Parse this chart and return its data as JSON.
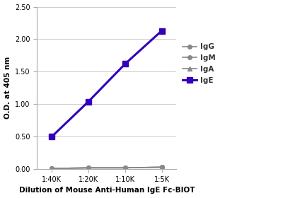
{
  "x_labels": [
    "1:40K",
    "1:20K",
    "1:10K",
    "1:5K"
  ],
  "x_values": [
    1,
    2,
    3,
    4
  ],
  "series_order": [
    "IgG",
    "IgM",
    "IgA",
    "IgE"
  ],
  "series": {
    "IgG": {
      "y": [
        0.01,
        0.02,
        0.02,
        0.03
      ],
      "color": "#888888",
      "marker": "o",
      "markerfacecolor": "#888888",
      "linewidth": 1.2,
      "markersize": 4,
      "linestyle": "-",
      "zorder": 2
    },
    "IgM": {
      "y": [
        0.01,
        0.02,
        0.02,
        0.03
      ],
      "color": "#888888",
      "marker": "o",
      "markerfacecolor": "#888888",
      "linewidth": 1.2,
      "markersize": 4,
      "linestyle": "-",
      "zorder": 2
    },
    "IgA": {
      "y": [
        0.01,
        0.02,
        0.02,
        0.03
      ],
      "color": "#888888",
      "marker": "^",
      "markerfacecolor": "#888888",
      "linewidth": 1.2,
      "markersize": 4,
      "linestyle": "-",
      "zorder": 2
    },
    "IgE": {
      "y": [
        0.5,
        1.04,
        1.62,
        2.13
      ],
      "color": "#3300BB",
      "marker": "s",
      "markerfacecolor": "#3300BB",
      "linewidth": 2.2,
      "markersize": 6,
      "linestyle": "-",
      "zorder": 3
    }
  },
  "xlabel": "Dilution of Mouse Anti-Human IgE Fc-BIOT",
  "ylabel": "O.D. at 405 nm",
  "ylim": [
    0.0,
    2.5
  ],
  "yticks": [
    0.0,
    0.5,
    1.0,
    1.5,
    2.0,
    2.5
  ],
  "background_color": "#ffffff",
  "grid_color": "#cccccc",
  "axis_label_fontsize": 7.5,
  "tick_fontsize": 7,
  "legend_fontsize": 7.5
}
